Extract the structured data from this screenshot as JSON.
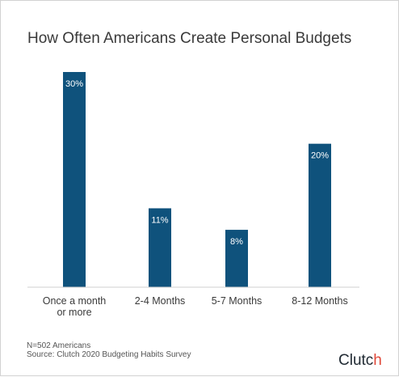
{
  "chart_data": {
    "type": "bar",
    "title": "How Often Americans Create Personal Budgets",
    "categories": [
      [
        "Once a month",
        "or more"
      ],
      [
        "2-4 Months"
      ],
      [
        "5-7 Months"
      ],
      [
        "8-12 Months"
      ]
    ],
    "values": [
      30,
      11,
      8,
      20
    ],
    "data_labels": [
      "30%",
      "11%",
      "8%",
      "20%"
    ],
    "unit": "%",
    "ylim": [
      0,
      30
    ],
    "grid": false,
    "bar_color": "#0f527c"
  },
  "footnote": {
    "sample": "N=502 Americans",
    "source": "Source: Clutch 2020 Budgeting Habits Survey"
  },
  "logo": {
    "name": "Clutch",
    "dot_color": "#e0493a"
  }
}
